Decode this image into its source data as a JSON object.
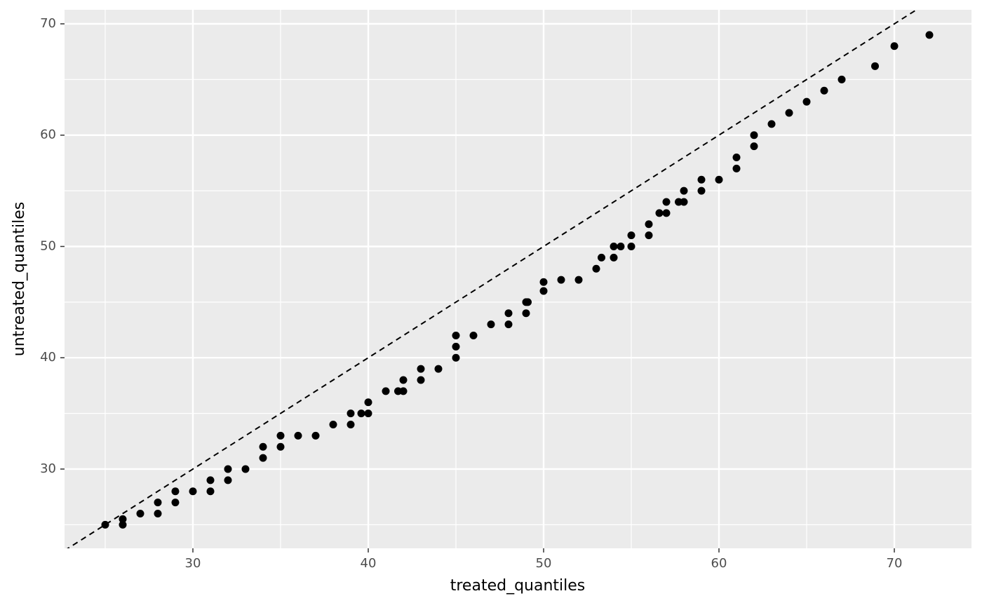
{
  "chart_data": {
    "type": "scatter",
    "x_label": "treated_quantiles",
    "y_label": "untreated_quantiles",
    "x": [
      25,
      26,
      26,
      27,
      28,
      28,
      29,
      29,
      30,
      31,
      31,
      32,
      32,
      33,
      34,
      34,
      35,
      35,
      36,
      37,
      38,
      39,
      39,
      39.6,
      40,
      40,
      41,
      41.7,
      42,
      42,
      43,
      43,
      44,
      45,
      45,
      45,
      46,
      47,
      48,
      48,
      49,
      49.1,
      49,
      50,
      50,
      51,
      52,
      53,
      53.3,
      54,
      54,
      54.4,
      55,
      55,
      56,
      56,
      56.6,
      57,
      57,
      57.7,
      58,
      58,
      59,
      59,
      60,
      61,
      61,
      62,
      62,
      63,
      64,
      65,
      66,
      67,
      68.9,
      70,
      72
    ],
    "y": [
      25,
      25.5,
      25,
      26,
      27,
      26,
      28,
      27,
      28,
      29,
      28,
      30,
      29,
      30,
      32,
      31,
      33,
      32,
      33,
      33,
      34,
      35,
      34,
      35,
      36,
      35,
      37,
      37,
      38,
      37,
      39,
      38,
      39,
      42,
      41,
      40,
      42,
      43,
      44,
      43,
      45,
      45,
      44,
      46.8,
      46,
      47,
      47,
      48,
      49,
      50,
      49,
      50,
      51,
      50,
      52,
      51,
      53,
      54,
      53,
      54,
      55,
      54,
      56,
      55,
      56,
      58,
      57,
      60,
      59,
      61,
      62,
      63,
      64,
      65,
      66.2,
      68,
      69
    ],
    "color": "#000000",
    "reference_line": {
      "slope": 1,
      "intercept": 0
    },
    "xlim": [
      22.68,
      74.4
    ],
    "ylim": [
      22.88,
      71.26
    ],
    "xticks": [
      30,
      40,
      50,
      60,
      70
    ],
    "yticks": [
      30,
      40,
      50,
      60,
      70
    ],
    "minor_xticks": [
      25,
      35,
      45,
      55,
      65
    ],
    "minor_yticks": [
      25,
      35,
      45,
      55,
      65
    ],
    "grid": true
  }
}
